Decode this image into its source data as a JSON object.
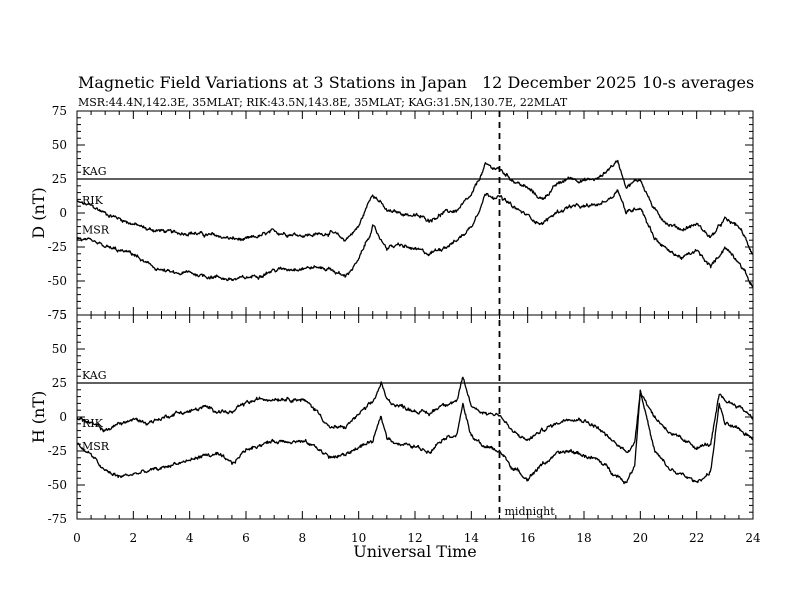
{
  "header": {
    "title": "Magnetic Field Variations at 3 Stations in Japan",
    "date": "12 December 2025",
    "averaging": "10-s averages",
    "stations_line": "MSR:44.4N,142.3E, 35MLAT;  RIK:43.5N,143.8E, 35MLAT;  KAG:31.5N,130.7E, 22MLAT"
  },
  "chart_data": {
    "type": "line",
    "xlabel": "Universal Time",
    "xlim": [
      0,
      24
    ],
    "x_ticks": [
      "0",
      "2",
      "4",
      "6",
      "8",
      "10",
      "12",
      "14",
      "16",
      "18",
      "20",
      "22",
      "24"
    ],
    "midnight_marker": {
      "x": 15,
      "label": "midnight"
    },
    "panels": [
      {
        "id": "D",
        "ylabel": "D (nT)",
        "ylim": [
          -75,
          75
        ],
        "y_ticks": [
          "75",
          "50",
          "25",
          "0",
          "-25",
          "-50",
          "-75"
        ],
        "series": [
          {
            "name": "KAG",
            "hours": [
              0,
              24
            ],
            "values": [
              25,
              25
            ]
          },
          {
            "name": "RIK",
            "hours": [
              0,
              0.5,
              1,
              1.5,
              2,
              2.5,
              3,
              3.5,
              4,
              4.5,
              5,
              5.5,
              6,
              6.5,
              7,
              7.5,
              8,
              8.5,
              9,
              9.5,
              10,
              10.5,
              10.8,
              11,
              11.5,
              12,
              12.5,
              13,
              13.5,
              14,
              14.5,
              15,
              15.5,
              16,
              16.5,
              17,
              17.5,
              18,
              18.5,
              19,
              19.2,
              19.5,
              20,
              20.5,
              21,
              21.5,
              22,
              22.5,
              23,
              23.5,
              24
            ],
            "values": [
              8,
              5,
              0,
              -4,
              -8,
              -12,
              -13,
              -15,
              -14,
              -16,
              -17,
              -19,
              -20,
              -17,
              -14,
              -15,
              -16,
              -16,
              -14,
              -20,
              -10,
              15,
              7,
              1,
              0,
              -2,
              -5,
              0,
              2,
              12,
              35,
              32,
              24,
              18,
              10,
              20,
              26,
              24,
              25,
              35,
              38,
              20,
              25,
              2,
              -8,
              -12,
              -8,
              -18,
              -5,
              -10,
              -30
            ]
          },
          {
            "name": "MSR",
            "hours": [
              0,
              0.5,
              1,
              1.5,
              2,
              2.5,
              3,
              3.5,
              4,
              4.5,
              5,
              5.5,
              6,
              6.5,
              7,
              7.5,
              8,
              8.5,
              9,
              9.5,
              10,
              10.5,
              10.8,
              11,
              11.5,
              12,
              12.5,
              13,
              13.5,
              14,
              14.5,
              15,
              15.5,
              16,
              16.5,
              17,
              17.5,
              18,
              18.5,
              19,
              19.2,
              19.5,
              20,
              20.5,
              21,
              21.5,
              22,
              22.5,
              23,
              23.5,
              24
            ],
            "values": [
              -18,
              -22,
              -25,
              -28,
              -30,
              -38,
              -42,
              -45,
              -44,
              -46,
              -47,
              -49,
              -48,
              -45,
              -42,
              -41,
              -40,
              -40,
              -41,
              -47,
              -35,
              -10,
              -20,
              -25,
              -24,
              -27,
              -30,
              -25,
              -20,
              -10,
              14,
              12,
              4,
              -2,
              -8,
              0,
              5,
              4,
              6,
              12,
              18,
              0,
              5,
              -18,
              -28,
              -33,
              -28,
              -40,
              -25,
              -35,
              -55
            ]
          }
        ]
      },
      {
        "id": "H",
        "ylabel": "H (nT)",
        "ylim": [
          -75,
          75
        ],
        "y_ticks": [
          "75",
          "50",
          "25",
          "0",
          "-25",
          "-50",
          "-75"
        ],
        "series": [
          {
            "name": "KAG",
            "hours": [
              0,
              24
            ],
            "values": [
              25,
              25
            ]
          },
          {
            "name": "RIK",
            "hours": [
              0,
              0.5,
              1,
              1.5,
              2,
              2.5,
              3,
              3.5,
              4,
              4.5,
              5,
              5.5,
              6,
              6.5,
              7,
              7.5,
              8,
              8.5,
              9,
              9.5,
              10,
              10.5,
              10.8,
              11,
              11.5,
              12,
              12.5,
              13,
              13.5,
              13.7,
              14,
              14.5,
              15,
              15.5,
              16,
              16.5,
              17,
              17.5,
              18,
              18.5,
              19,
              19.5,
              19.8,
              20,
              20.5,
              21,
              21.5,
              22,
              22.5,
              22.8,
              23,
              23.5,
              24
            ],
            "values": [
              0,
              -5,
              -10,
              -5,
              -2,
              -4,
              -1,
              3,
              4,
              7,
              5,
              3,
              10,
              13,
              14,
              14,
              13,
              5,
              -8,
              -8,
              2,
              10,
              25,
              12,
              8,
              5,
              2,
              10,
              12,
              28,
              8,
              3,
              2,
              -12,
              -17,
              -10,
              -5,
              0,
              -2,
              -8,
              -18,
              -25,
              -20,
              20,
              0,
              -10,
              -18,
              -22,
              -20,
              15,
              12,
              8,
              0
            ]
          },
          {
            "name": "MSR",
            "hours": [
              0,
              0.5,
              1,
              1.5,
              2,
              2.5,
              3,
              3.5,
              4,
              4.5,
              5,
              5.5,
              6,
              6.5,
              7,
              7.5,
              8,
              8.5,
              9,
              9.5,
              10,
              10.5,
              10.8,
              11,
              11.5,
              12,
              12.5,
              13,
              13.5,
              13.7,
              14,
              14.5,
              15,
              15.5,
              16,
              16.5,
              17,
              17.5,
              18,
              18.5,
              19,
              19.5,
              19.8,
              20,
              20.5,
              21,
              21.5,
              22,
              22.5,
              22.8,
              23,
              23.5,
              24
            ],
            "values": [
              -20,
              -28,
              -40,
              -44,
              -42,
              -40,
              -38,
              -34,
              -32,
              -28,
              -28,
              -35,
              -24,
              -20,
              -18,
              -17,
              -18,
              -22,
              -30,
              -28,
              -22,
              -18,
              0,
              -15,
              -20,
              -22,
              -25,
              -15,
              -12,
              10,
              -15,
              -22,
              -25,
              -38,
              -45,
              -35,
              -28,
              -25,
              -28,
              -32,
              -40,
              -48,
              -35,
              20,
              -25,
              -38,
              -43,
              -48,
              -40,
              10,
              -5,
              -10,
              -15
            ]
          }
        ]
      }
    ]
  }
}
